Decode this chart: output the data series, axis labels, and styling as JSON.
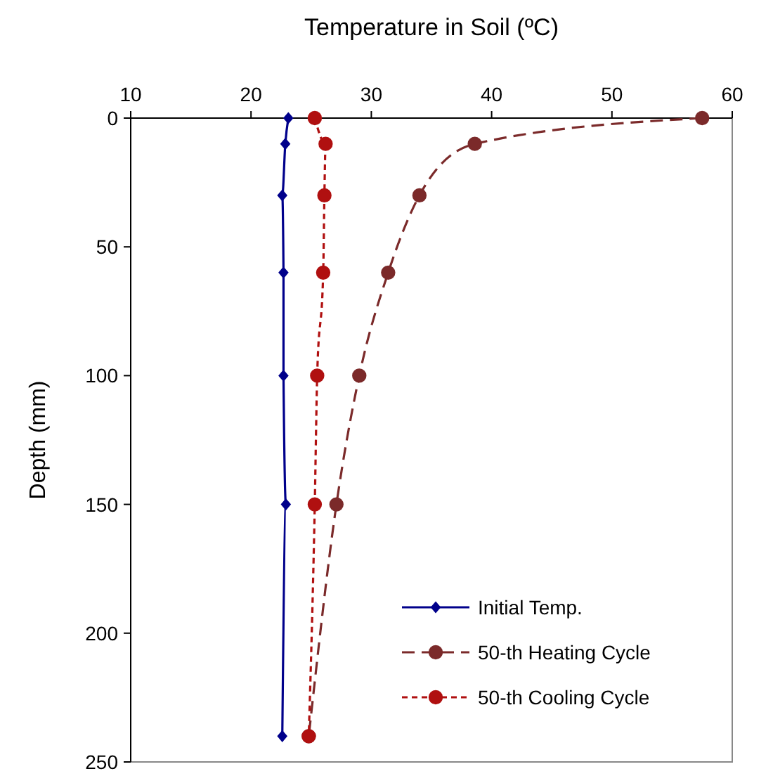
{
  "chart_data": {
    "type": "line",
    "xlabel": "Temperature in Soil (ºC)",
    "ylabel": "Depth (mm)",
    "xlim": [
      10,
      60
    ],
    "xticks": [
      10,
      20,
      30,
      40,
      50,
      60
    ],
    "ylim": [
      250,
      0
    ],
    "yticks": [
      0,
      50,
      100,
      150,
      200,
      250
    ],
    "grid": false,
    "legend": "bottom right",
    "series": [
      {
        "name": "Initial Temp.",
        "color": "#00008b",
        "marker": "diamond",
        "line_style": "solid",
        "x": [
          23.1,
          22.85,
          22.6,
          22.7,
          22.7,
          22.9,
          22.6
        ],
        "values": [
          0,
          10,
          30,
          60,
          100,
          150,
          240
        ]
      },
      {
        "name": "50-th Heating Cycle",
        "color": "#7b2a2a",
        "marker": "circle",
        "line_style": "dashed",
        "x": [
          57.5,
          38.6,
          34.0,
          31.4,
          29.0,
          27.1,
          24.8
        ],
        "values": [
          0,
          10,
          30,
          60,
          100,
          150,
          240
        ]
      },
      {
        "name": "50-th Cooling Cycle",
        "color": "#b01010",
        "marker": "circle",
        "line_style": "dotted",
        "x": [
          25.3,
          26.2,
          26.1,
          26.0,
          25.5,
          25.3,
          24.8
        ],
        "values": [
          0,
          10,
          30,
          60,
          100,
          150,
          240
        ]
      }
    ]
  }
}
